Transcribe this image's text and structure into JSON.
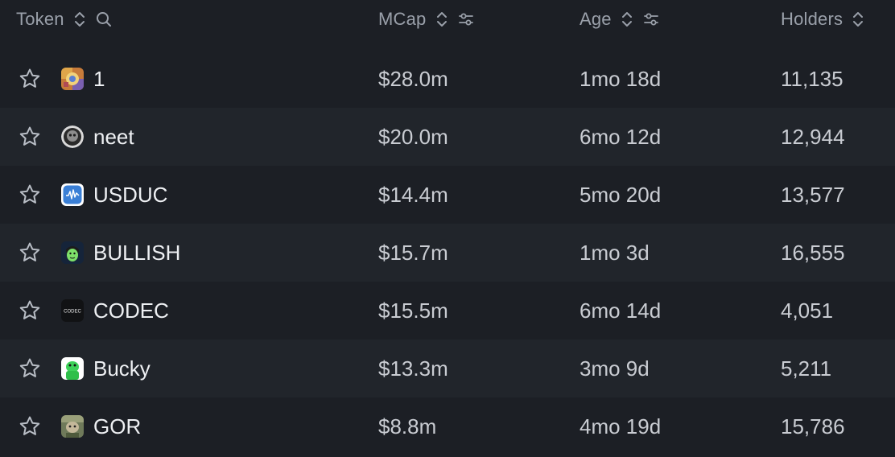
{
  "header": {
    "token_label": "Token",
    "mcap_label": "MCap",
    "age_label": "Age",
    "holders_label": "Holders"
  },
  "colors": {
    "background": "#1c1f25",
    "row_alt": "#21252b",
    "header_text": "#9aa0aa",
    "cell_text": "#c9ccd2",
    "name_text": "#eef0f3"
  },
  "rows": [
    {
      "name": "1",
      "mcap": "$28.0m",
      "age": "1mo 18d",
      "holders": "11,135",
      "icon": "token-1-icon"
    },
    {
      "name": "neet",
      "mcap": "$20.0m",
      "age": "6mo 12d",
      "holders": "12,944",
      "icon": "token-neet-icon"
    },
    {
      "name": "USDUC",
      "mcap": "$14.4m",
      "age": "5mo 20d",
      "holders": "13,577",
      "icon": "token-usduc-icon"
    },
    {
      "name": "BULLISH",
      "mcap": "$15.7m",
      "age": "1mo 3d",
      "holders": "16,555",
      "icon": "token-bullish-icon"
    },
    {
      "name": "CODEC",
      "mcap": "$15.5m",
      "age": "6mo 14d",
      "holders": "4,051",
      "icon": "token-codec-icon",
      "icon_text": "CODEC"
    },
    {
      "name": "Bucky",
      "mcap": "$13.3m",
      "age": "3mo 9d",
      "holders": "5,211",
      "icon": "token-bucky-icon"
    },
    {
      "name": "GOR",
      "mcap": "$8.8m",
      "age": "4mo 19d",
      "holders": "15,786",
      "icon": "token-gor-icon"
    }
  ]
}
